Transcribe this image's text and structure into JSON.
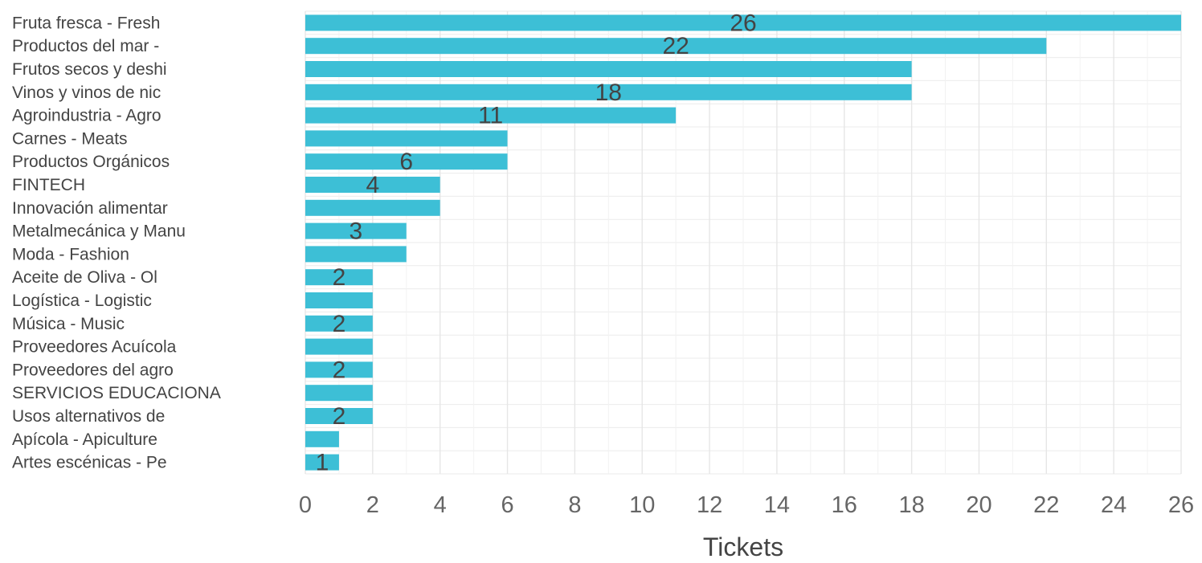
{
  "chart_data": {
    "type": "bar",
    "orientation": "horizontal",
    "title": "",
    "xlabel": "Tickets",
    "ylabel": "",
    "xlim": [
      0,
      26
    ],
    "x_ticks": [
      "0",
      "2",
      "4",
      "6",
      "8",
      "10",
      "12",
      "14",
      "16",
      "18",
      "20",
      "22",
      "24",
      "26"
    ],
    "grid": true,
    "bar_color": "#3dbfd6",
    "categories": [
      "Fruta fresca - Fresh",
      "Productos del mar -",
      "Frutos secos y deshi",
      "Vinos y vinos de nic",
      "Agroindustria - Agro",
      "Carnes - Meats",
      "Productos Orgánicos",
      "FINTECH",
      "Innovación alimentar",
      "Metalmecánica y Manu",
      "Moda - Fashion",
      "Aceite de Oliva - Ol",
      "Logística - Logistic",
      "Música - Music",
      "Proveedores Acuícola",
      "Proveedores del agro",
      "SERVICIOS EDUCACIONA",
      "Usos alternativos de",
      "Apícola - Apiculture",
      "Artes escénicas - Pe"
    ],
    "values": [
      26,
      22,
      18,
      18,
      11,
      6,
      6,
      4,
      4,
      3,
      3,
      2,
      2,
      2,
      2,
      2,
      2,
      2,
      1,
      1
    ],
    "data_labels": [
      "26",
      "22",
      "",
      "18",
      "11",
      "",
      "6",
      "4",
      "",
      "3",
      "",
      "2",
      "",
      "2",
      "",
      "2",
      "",
      "2",
      "",
      "1"
    ]
  }
}
